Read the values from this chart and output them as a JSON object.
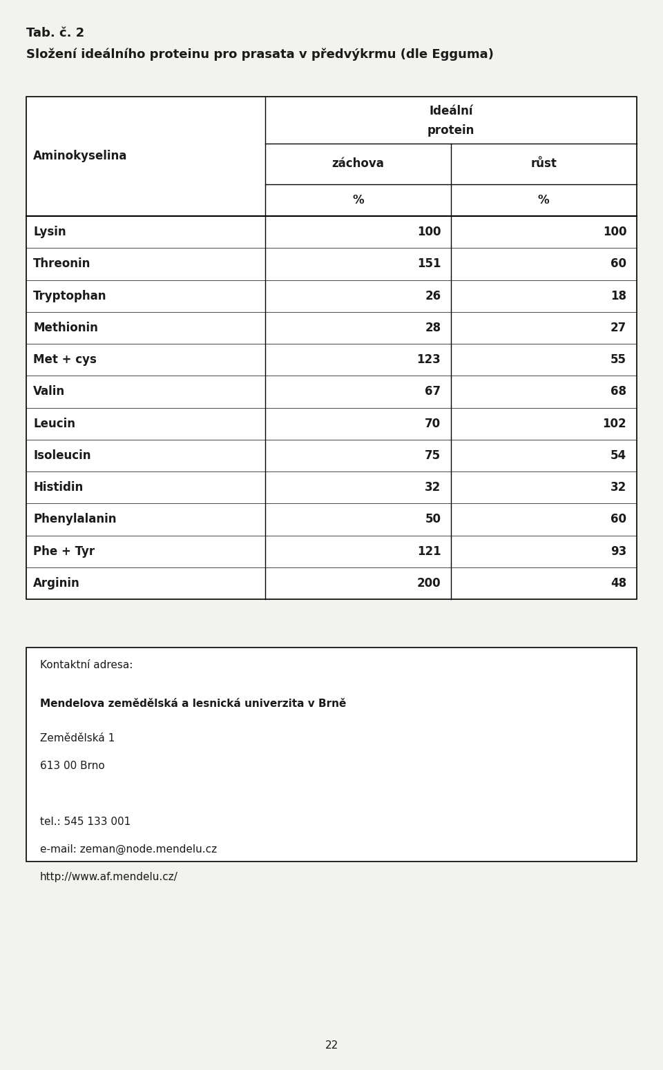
{
  "tab_label": "Tab. č. 2",
  "subtitle": "Složení ideálního proteinu pro prasata v předvýkrmu (dle Egguma)",
  "header_group_line1": "Ideální",
  "header_group_line2": "protein",
  "col1_header": "Aminokyselina",
  "col2_header_line1": "záchova",
  "col2_header_line2": "%",
  "col3_header_line1": "růst",
  "col3_header_line2": "%",
  "rows": [
    [
      "Lysin",
      "100",
      "100"
    ],
    [
      "Threonin",
      "151",
      "60"
    ],
    [
      "Tryptophan",
      "26",
      "18"
    ],
    [
      "Methionin",
      "28",
      "27"
    ],
    [
      "Met + cys",
      "123",
      "55"
    ],
    [
      "Valin",
      "67",
      "68"
    ],
    [
      "Leucin",
      "70",
      "102"
    ],
    [
      "Isoleucin",
      "75",
      "54"
    ],
    [
      "Histidin",
      "32",
      "32"
    ],
    [
      "Phenylalanin",
      "50",
      "60"
    ],
    [
      "Phe + Tyr",
      "121",
      "93"
    ],
    [
      "Arginin",
      "200",
      "48"
    ]
  ],
  "contact_box_title": "Kontaktní adresa:",
  "contact_bold_line": "Mendelova zemědělská a lesnická univerzita v Brně",
  "contact_lines": [
    "Zemědělská 1",
    "613 00 Brno",
    "",
    "tel.: 545 133 001",
    "e-mail: zeman@node.mendelu.cz",
    "http://www.af.mendelu.cz/"
  ],
  "page_number": "22",
  "bg_color": "#f2f2ee",
  "table_bg": "#ffffff",
  "text_color": "#1a1a1a",
  "font_size_title": 13,
  "font_size_subtitle": 13,
  "font_size_table": 12,
  "font_size_contact": 11,
  "font_size_page": 11
}
